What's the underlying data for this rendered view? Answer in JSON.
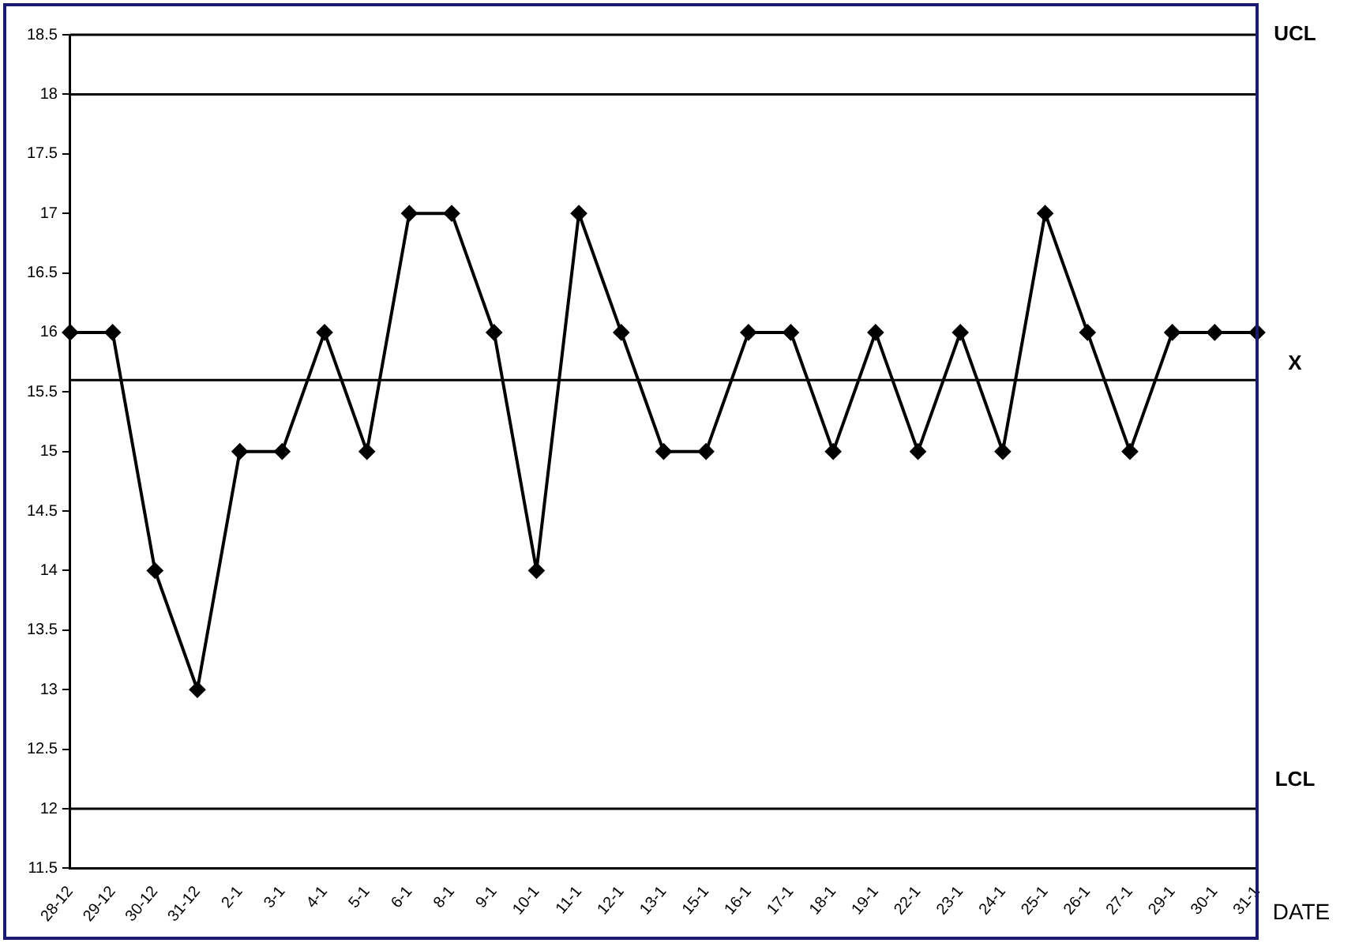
{
  "chart_data": {
    "type": "line",
    "xlabel": "DATE",
    "categories": [
      "28-12",
      "29-12",
      "30-12",
      "31-12",
      "2-1",
      "3-1",
      "4-1",
      "5-1",
      "6-1",
      "8-1",
      "9-1",
      "10-1",
      "11-1",
      "12-1",
      "13-1",
      "15-1",
      "16-1",
      "17-1",
      "18-1",
      "19-1",
      "22-1",
      "23-1",
      "24-1",
      "25-1",
      "26-1",
      "27-1",
      "29-1",
      "30-1",
      "31-1"
    ],
    "series": [
      {
        "color": "#000000",
        "values": [
          16,
          16,
          14,
          13,
          15,
          15,
          16,
          15,
          17,
          17,
          16,
          14,
          17,
          16,
          15,
          15,
          16,
          16,
          15,
          16,
          15,
          16,
          15,
          17,
          16,
          15,
          16,
          16,
          16
        ]
      }
    ],
    "ylim": [
      11.5,
      18.5
    ],
    "yticks": [
      11.5,
      12,
      12.5,
      13,
      13.5,
      14,
      14.5,
      15,
      15.5,
      16,
      16.5,
      17,
      17.5,
      18,
      18.5
    ],
    "ref_lines": [
      {
        "axis": "y",
        "value": 18,
        "label": "UCL",
        "color": "#000000"
      },
      {
        "axis": "y",
        "value": 15.6,
        "label": "X",
        "color": "#000000"
      },
      {
        "axis": "y",
        "value": 12,
        "label": "LCL",
        "color": "#000000"
      }
    ],
    "grid": false,
    "legend": false,
    "marker": "diamond",
    "line_style": "solid"
  }
}
